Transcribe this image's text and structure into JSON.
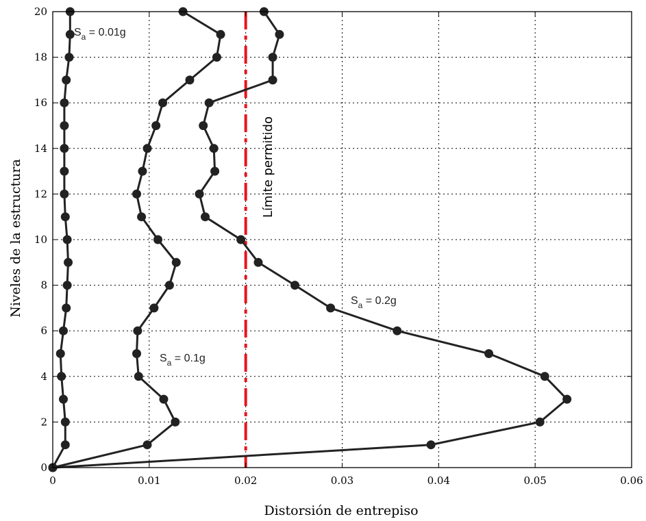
{
  "chart_data": {
    "type": "line",
    "title": "",
    "xlabel": "Distorsión de entrepiso",
    "ylabel": "Niveles de la estructura",
    "xlim": [
      0,
      0.06
    ],
    "ylim": [
      0,
      20
    ],
    "xticks": [
      0,
      0.01,
      0.02,
      0.03,
      0.04,
      0.05,
      0.06
    ],
    "xtick_labels": [
      "0",
      "0.01",
      "0.02",
      "0.03",
      "0.04",
      "0.05",
      "0.06"
    ],
    "yticks": [
      0,
      2,
      4,
      6,
      8,
      10,
      12,
      14,
      16,
      18,
      20
    ],
    "ytick_labels": [
      "0",
      "2",
      "4",
      "6",
      "8",
      "10",
      "12",
      "14",
      "16",
      "18",
      "20"
    ],
    "grid": true,
    "series": [
      {
        "label_main": "S",
        "label_sub": "a",
        "label_rest": " = 0.01g",
        "color": "#222222",
        "points": [
          [
            0,
            0
          ],
          [
            0.0013,
            1
          ],
          [
            0.0013,
            2
          ],
          [
            0.0011,
            3
          ],
          [
            0.0009,
            4
          ],
          [
            0.0008,
            5
          ],
          [
            0.0011,
            6
          ],
          [
            0.0014,
            7
          ],
          [
            0.0015,
            8
          ],
          [
            0.0016,
            9
          ],
          [
            0.0015,
            10
          ],
          [
            0.0013,
            11
          ],
          [
            0.0012,
            12
          ],
          [
            0.0012,
            13
          ],
          [
            0.0012,
            14
          ],
          [
            0.0012,
            15
          ],
          [
            0.0012,
            16
          ],
          [
            0.0014,
            17
          ],
          [
            0.0017,
            18
          ],
          [
            0.0018,
            19
          ],
          [
            0.0018,
            20
          ]
        ]
      },
      {
        "label_main": "S",
        "label_sub": "a",
        "label_rest": " = 0.1g",
        "color": "#222222",
        "points": [
          [
            0,
            0
          ],
          [
            0.0098,
            1
          ],
          [
            0.0127,
            2
          ],
          [
            0.0115,
            3
          ],
          [
            0.0089,
            4
          ],
          [
            0.0087,
            5
          ],
          [
            0.0088,
            6
          ],
          [
            0.0105,
            7
          ],
          [
            0.0121,
            8
          ],
          [
            0.0128,
            9
          ],
          [
            0.0109,
            10
          ],
          [
            0.0092,
            11
          ],
          [
            0.0087,
            12
          ],
          [
            0.0093,
            13
          ],
          [
            0.0098,
            14
          ],
          [
            0.0107,
            15
          ],
          [
            0.0114,
            16
          ],
          [
            0.0142,
            17
          ],
          [
            0.017,
            18
          ],
          [
            0.0174,
            19
          ],
          [
            0.0135,
            20
          ]
        ]
      },
      {
        "label_main": "S",
        "label_sub": "a",
        "label_rest": " = 0.2g",
        "color": "#222222",
        "points": [
          [
            0,
            0
          ],
          [
            0.0392,
            1
          ],
          [
            0.0505,
            2
          ],
          [
            0.0533,
            3
          ],
          [
            0.051,
            4
          ],
          [
            0.0452,
            5
          ],
          [
            0.0357,
            6
          ],
          [
            0.0288,
            7
          ],
          [
            0.0251,
            8
          ],
          [
            0.0213,
            9
          ],
          [
            0.0195,
            10
          ],
          [
            0.0158,
            11
          ],
          [
            0.0152,
            12
          ],
          [
            0.0168,
            13
          ],
          [
            0.0167,
            14
          ],
          [
            0.0156,
            15
          ],
          [
            0.0162,
            16
          ],
          [
            0.0228,
            17
          ],
          [
            0.0228,
            18
          ],
          [
            0.0235,
            19
          ],
          [
            0.0219,
            20
          ]
        ]
      }
    ],
    "limit": {
      "x": 0.02,
      "label": "Límite permitido",
      "color": "#e8141c"
    }
  }
}
